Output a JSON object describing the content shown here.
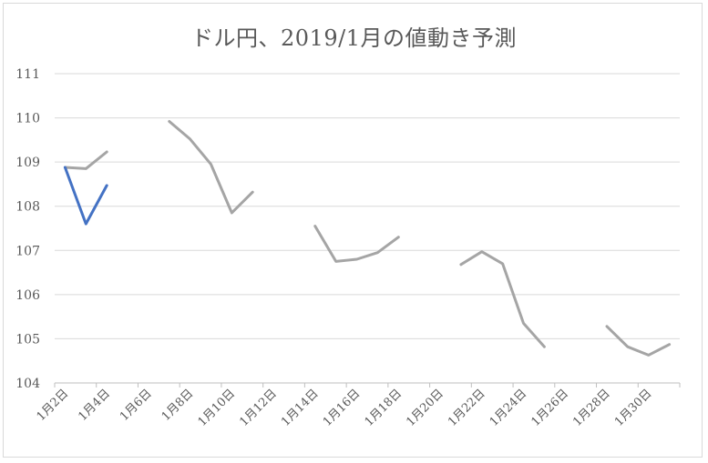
{
  "chart_data": {
    "type": "line",
    "title": "ドル円、2019/1月の値動き予測",
    "xlabel": "",
    "ylabel": "",
    "ylim": [
      104,
      111
    ],
    "yticks": [
      104,
      105,
      106,
      107,
      108,
      109,
      110,
      111
    ],
    "grid": true,
    "legend": "none",
    "x_dates": [
      2,
      3,
      4,
      5,
      6,
      7,
      8,
      9,
      10,
      11,
      12,
      13,
      14,
      15,
      16,
      17,
      18,
      19,
      20,
      21,
      22,
      23,
      24,
      25,
      26,
      27,
      28,
      29,
      30,
      31
    ],
    "xtick_labels": [
      "1月2日",
      "1月4日",
      "1月6日",
      "1月8日",
      "1月10日",
      "1月12日",
      "1月14日",
      "1月16日",
      "1月18日",
      "1月20日",
      "1月22日",
      "1月24日",
      "1月26日",
      "1月28日",
      "1月30日"
    ],
    "series": [
      {
        "color": "#a5a5a5",
        "points": [
          {
            "x": 2,
            "y": 108.88
          },
          {
            "x": 3,
            "y": 108.85
          },
          {
            "x": 4,
            "y": 109.23
          },
          {
            "x": 7,
            "y": 109.92
          },
          {
            "x": 8,
            "y": 109.52
          },
          {
            "x": 9,
            "y": 108.95
          },
          {
            "x": 10,
            "y": 107.85
          },
          {
            "x": 11,
            "y": 108.32
          },
          {
            "x": 14,
            "y": 107.55
          },
          {
            "x": 15,
            "y": 106.75
          },
          {
            "x": 16,
            "y": 106.8
          },
          {
            "x": 17,
            "y": 106.95
          },
          {
            "x": 18,
            "y": 107.3
          },
          {
            "x": 21,
            "y": 106.68
          },
          {
            "x": 22,
            "y": 106.97
          },
          {
            "x": 23,
            "y": 106.7
          },
          {
            "x": 24,
            "y": 105.35
          },
          {
            "x": 25,
            "y": 104.82
          },
          {
            "x": 28,
            "y": 105.28
          },
          {
            "x": 29,
            "y": 104.82
          },
          {
            "x": 30,
            "y": 104.63
          },
          {
            "x": 31,
            "y": 104.87
          }
        ]
      },
      {
        "color": "#4472c4",
        "points": [
          {
            "x": 2,
            "y": 108.88
          },
          {
            "x": 3,
            "y": 107.6
          },
          {
            "x": 4,
            "y": 108.47
          }
        ]
      }
    ]
  }
}
